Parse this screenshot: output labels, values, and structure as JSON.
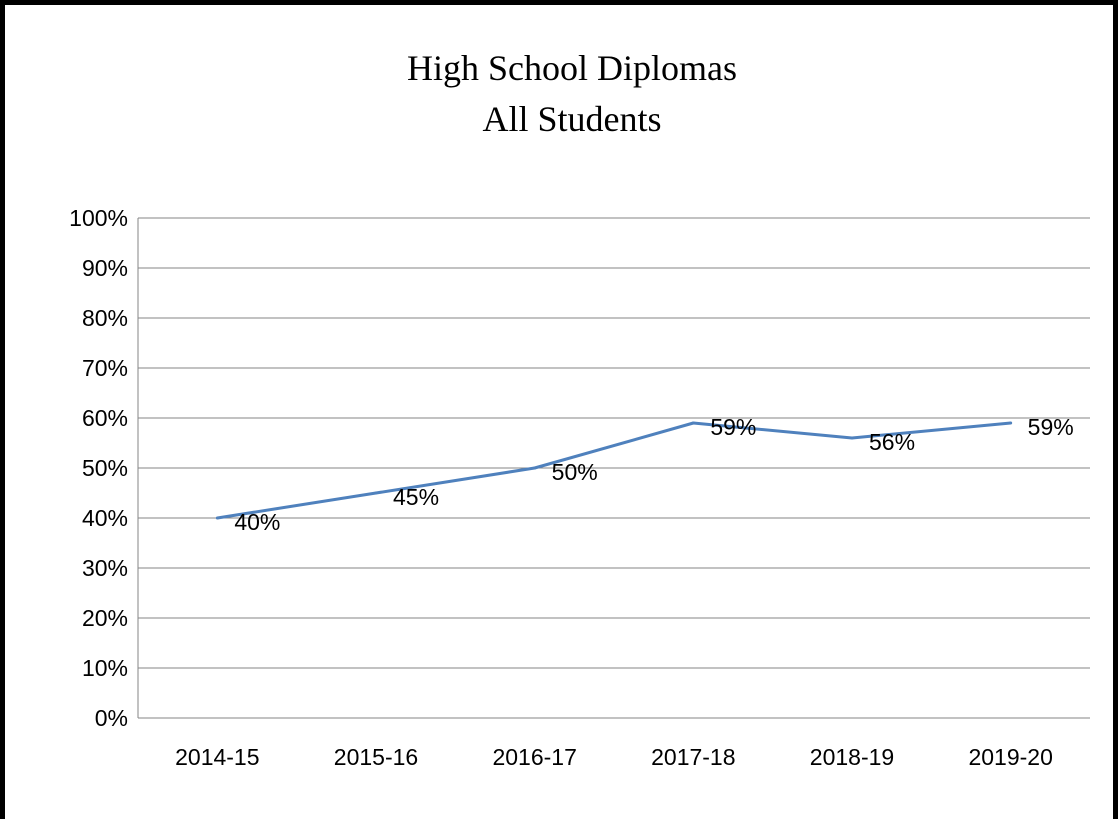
{
  "chart_data": {
    "type": "line",
    "title": "High School Diplomas",
    "subtitle": "All Students",
    "xlabel": "",
    "ylabel": "",
    "categories": [
      "2014-15",
      "2015-16",
      "2016-17",
      "2017-18",
      "2018-19",
      "2019-20"
    ],
    "series": [
      {
        "values": [
          40,
          45,
          50,
          59,
          56,
          59
        ],
        "labels": [
          "40%",
          "45%",
          "50%",
          "59%",
          "56%",
          "59%"
        ],
        "color": "#4f81bd"
      }
    ],
    "ylim": [
      0,
      100
    ],
    "ytick_values": [
      0,
      10,
      20,
      30,
      40,
      50,
      60,
      70,
      80,
      90,
      100
    ],
    "ytick_labels": [
      "0%",
      "10%",
      "20%",
      "30%",
      "40%",
      "50%",
      "60%",
      "70%",
      "80%",
      "90%",
      "100%"
    ],
    "grid": true,
    "legend": "none",
    "colors": {
      "gridline": "#868686",
      "line": "#4f81bd"
    }
  }
}
